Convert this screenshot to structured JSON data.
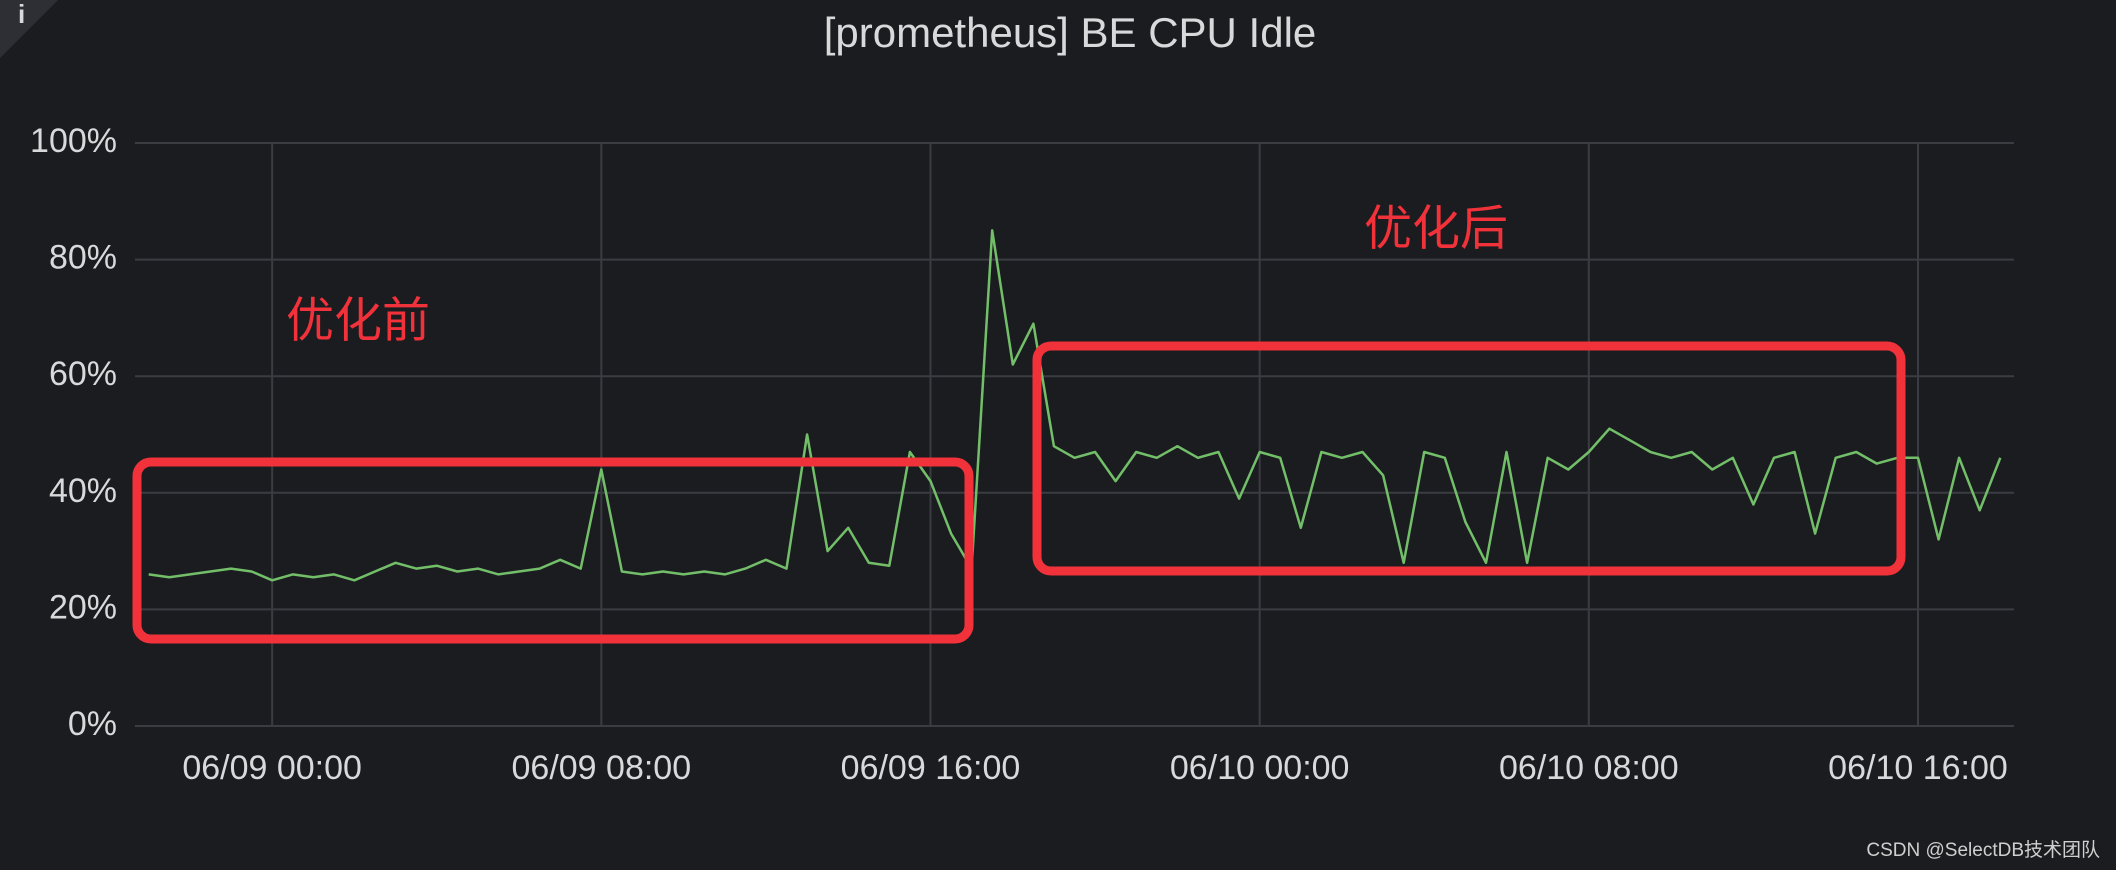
{
  "info_icon": "i",
  "watermark": "CSDN @SelectDB技术团队",
  "chart_data": {
    "type": "line",
    "title": "[prometheus] BE CPU Idle",
    "annotations": [
      "优化前",
      "优化后"
    ],
    "xlim": [
      "06/08 20:40",
      "06/10 18:20"
    ],
    "xticks": [
      "06/09 00:00",
      "06/09 08:00",
      "06/09 16:00",
      "06/10 00:00",
      "06/10 08:00",
      "06/10 16:00"
    ],
    "ylim": [
      0,
      100
    ],
    "yticks": [
      {
        "value": 0,
        "label": "0%"
      },
      {
        "value": 20,
        "label": "20%"
      },
      {
        "value": 40,
        "label": "40%"
      },
      {
        "value": 60,
        "label": "60%"
      },
      {
        "value": 80,
        "label": "80%"
      },
      {
        "value": 100,
        "label": "100%"
      }
    ],
    "grid": true,
    "x": [
      "06/08 21:00",
      "06/08 21:30",
      "06/08 22:00",
      "06/08 22:30",
      "06/08 23:00",
      "06/08 23:30",
      "06/09 00:00",
      "06/09 00:30",
      "06/09 01:00",
      "06/09 01:30",
      "06/09 02:00",
      "06/09 02:30",
      "06/09 03:00",
      "06/09 03:30",
      "06/09 04:00",
      "06/09 04:30",
      "06/09 05:00",
      "06/09 05:30",
      "06/09 06:00",
      "06/09 06:30",
      "06/09 07:00",
      "06/09 07:30",
      "06/09 08:00",
      "06/09 08:30",
      "06/09 09:00",
      "06/09 09:30",
      "06/09 10:00",
      "06/09 10:30",
      "06/09 11:00",
      "06/09 11:30",
      "06/09 12:00",
      "06/09 12:30",
      "06/09 13:00",
      "06/09 13:30",
      "06/09 14:00",
      "06/09 14:30",
      "06/09 15:00",
      "06/09 15:30",
      "06/09 16:00",
      "06/09 16:30",
      "06/09 17:00",
      "06/09 17:30",
      "06/09 18:00",
      "06/09 18:30",
      "06/09 19:00",
      "06/09 19:30",
      "06/09 20:00",
      "06/09 20:30",
      "06/09 21:00",
      "06/09 21:30",
      "06/09 22:00",
      "06/09 22:30",
      "06/09 23:00",
      "06/09 23:30",
      "06/10 00:00",
      "06/10 00:30",
      "06/10 01:00",
      "06/10 01:30",
      "06/10 02:00",
      "06/10 02:30",
      "06/10 03:00",
      "06/10 03:30",
      "06/10 04:00",
      "06/10 04:30",
      "06/10 05:00",
      "06/10 05:30",
      "06/10 06:00",
      "06/10 06:30",
      "06/10 07:00",
      "06/10 07:30",
      "06/10 08:00",
      "06/10 08:30",
      "06/10 09:00",
      "06/10 09:30",
      "06/10 10:00",
      "06/10 10:30",
      "06/10 11:00",
      "06/10 11:30",
      "06/10 12:00",
      "06/10 12:30",
      "06/10 13:00",
      "06/10 13:30",
      "06/10 14:00",
      "06/10 14:30",
      "06/10 15:00",
      "06/10 15:30",
      "06/10 16:00",
      "06/10 16:30",
      "06/10 17:00",
      "06/10 17:30",
      "06/10 18:00"
    ],
    "series": [
      {
        "color": "#73bf69",
        "values": [
          26,
          25.5,
          26,
          26.5,
          27,
          26.5,
          25,
          26,
          25.5,
          26,
          25,
          26.5,
          28,
          27,
          27.5,
          26.5,
          27,
          26,
          26.5,
          27,
          28.5,
          27,
          44,
          26.5,
          26,
          26.5,
          26,
          26.5,
          26,
          27,
          28.5,
          27,
          50,
          30,
          34,
          28,
          27.5,
          47,
          42,
          33,
          27,
          85,
          62,
          69,
          48,
          46,
          47,
          42,
          47,
          46,
          48,
          46,
          47,
          39,
          47,
          46,
          34,
          47,
          46,
          47,
          43,
          28,
          47,
          46,
          35,
          28,
          47,
          28,
          46,
          44,
          47,
          51,
          49,
          47,
          46,
          47,
          44,
          46,
          38,
          46,
          47,
          33,
          46,
          47,
          45,
          46,
          46,
          32,
          46,
          37,
          46
        ]
      }
    ]
  }
}
